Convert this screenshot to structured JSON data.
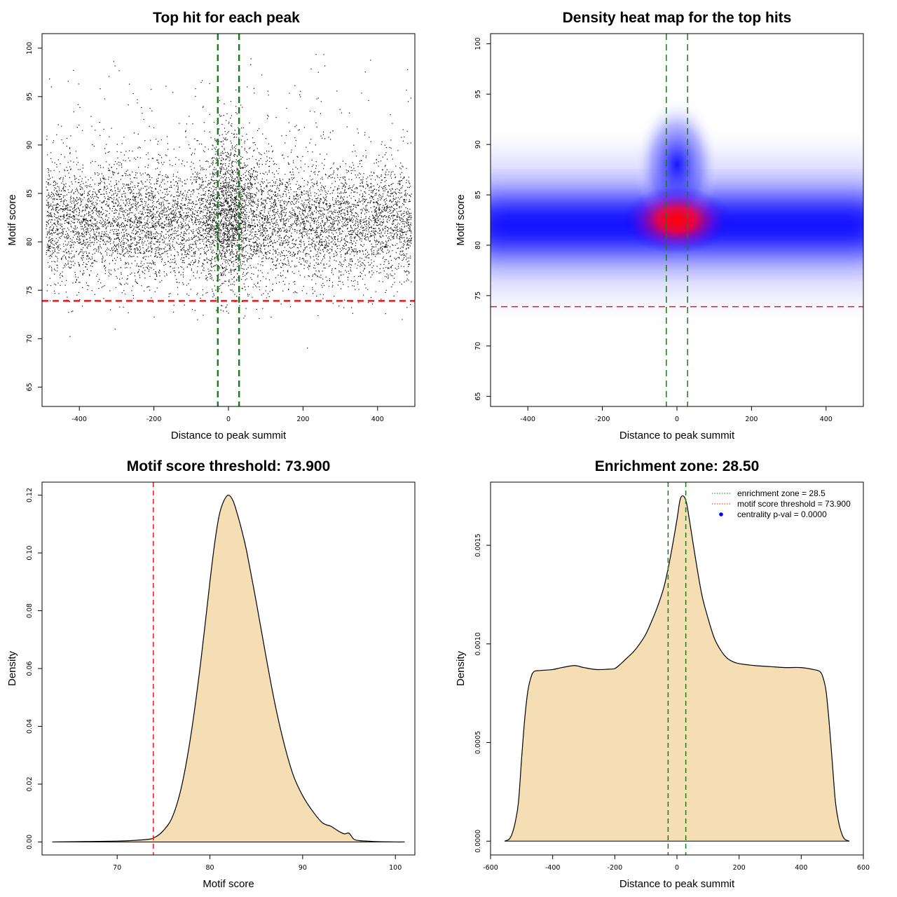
{
  "colors": {
    "threshold_line": "#e31a1c",
    "zone_line": "#1a7a1a",
    "density_fill": "#f5deb3",
    "heat_low": "#0000ff",
    "heat_high": "#ff0000",
    "points": "#000000"
  },
  "chart_data": [
    {
      "id": "scatter",
      "type": "scatter",
      "title": "Top hit for each peak",
      "xlabel": "Distance to peak summit",
      "ylabel": "Motif score",
      "xlim": [
        -500,
        500
      ],
      "ylim": [
        63,
        101.5
      ],
      "xticks": [
        -400,
        -200,
        0,
        200,
        400
      ],
      "yticks": [
        65,
        70,
        75,
        80,
        85,
        90,
        95,
        100
      ],
      "hlines": [
        73.9
      ],
      "vlines": [
        -28.5,
        28.5
      ],
      "x_range_of_points": [
        -490,
        490
      ],
      "score_center": 82,
      "score_sd": 3.2,
      "central_peak_score": 84
    },
    {
      "id": "heatmap",
      "type": "heatmap",
      "title": "Density heat map for the top hits",
      "xlabel": "Distance to peak summit",
      "ylabel": "Motif score",
      "xlim": [
        -500,
        500
      ],
      "ylim": [
        64,
        101
      ],
      "xticks": [
        -400,
        -200,
        0,
        200,
        400
      ],
      "yticks": [
        65,
        70,
        75,
        80,
        85,
        90,
        95,
        100
      ],
      "hlines": [
        73.9
      ],
      "vlines": [
        -28.5,
        28.5
      ],
      "hot_spot": {
        "x": 0,
        "score": 82.5
      },
      "band_score": 82
    },
    {
      "id": "score_density",
      "type": "area",
      "title": "Motif score threshold: 73.900",
      "xlabel": "Motif score",
      "ylabel": "Density",
      "xlim": [
        61.9,
        102.1
      ],
      "ylim": [
        -0.0045,
        0.1245
      ],
      "xticks": [
        70,
        80,
        90,
        100
      ],
      "yticks": [
        0.0,
        0.02,
        0.04,
        0.06,
        0.08,
        0.1,
        0.12
      ],
      "ytick_labels": [
        "0.00",
        "0.02",
        "0.04",
        "0.06",
        "0.08",
        "0.10",
        "0.12"
      ],
      "vlines": [
        73.9
      ],
      "x": [
        63,
        70,
        73,
        74,
        75,
        76,
        77,
        78,
        79,
        80,
        80.5,
        81,
        81.5,
        82,
        82.5,
        83,
        83.5,
        84,
        85,
        86,
        87,
        88,
        89,
        90,
        91,
        92,
        92.5,
        93,
        93.5,
        94,
        94.5,
        95,
        95.5,
        96,
        97,
        98,
        100,
        101
      ],
      "y": [
        0.0,
        0.0003,
        0.0008,
        0.0015,
        0.004,
        0.009,
        0.02,
        0.038,
        0.062,
        0.09,
        0.103,
        0.113,
        0.118,
        0.12,
        0.118,
        0.113,
        0.107,
        0.1,
        0.083,
        0.065,
        0.048,
        0.034,
        0.023,
        0.016,
        0.011,
        0.007,
        0.006,
        0.0055,
        0.0045,
        0.0035,
        0.0028,
        0.003,
        0.001,
        0.0005,
        0.0003,
        0.0001,
        0.0,
        0.0
      ]
    },
    {
      "id": "distance_density",
      "type": "area",
      "title": "Enrichment zone: 28.50",
      "xlabel": "Distance to peak summit",
      "ylabel": "Density",
      "xlim": [
        -600,
        600
      ],
      "ylim": [
        -7e-05,
        0.00182
      ],
      "xticks": [
        -600,
        -400,
        -200,
        0,
        200,
        400,
        600
      ],
      "yticks": [
        0.0,
        0.0005,
        0.001,
        0.0015
      ],
      "ytick_labels": [
        "0.0000",
        "0.0005",
        "0.0010",
        "0.0015"
      ],
      "vlines": [
        -28.5,
        28.5
      ],
      "x": [
        -555,
        -540,
        -530,
        -520,
        -510,
        -500,
        -490,
        -480,
        -470,
        -460,
        -440,
        -400,
        -370,
        -330,
        -300,
        -260,
        -220,
        -200,
        -180,
        -160,
        -140,
        -120,
        -100,
        -80,
        -60,
        -40,
        -20,
        0,
        10,
        20,
        30,
        40,
        60,
        80,
        100,
        120,
        140,
        160,
        180,
        200,
        250,
        300,
        350,
        400,
        440,
        460,
        470,
        480,
        490,
        500,
        510,
        520,
        530,
        540,
        555
      ],
      "y": [
        0.0,
        1e-05,
        4e-05,
        0.0001,
        0.0002,
        0.00042,
        0.00062,
        0.00076,
        0.00083,
        0.00086,
        0.000865,
        0.00087,
        0.00088,
        0.00089,
        0.00088,
        0.00087,
        0.000872,
        0.000875,
        0.0009,
        0.00093,
        0.00096,
        0.001,
        0.00105,
        0.00112,
        0.0012,
        0.0013,
        0.00145,
        0.00163,
        0.00173,
        0.00175,
        0.00172,
        0.00163,
        0.00143,
        0.00125,
        0.00113,
        0.00103,
        0.00097,
        0.00093,
        0.00091,
        0.0009,
        0.00089,
        0.000885,
        0.00088,
        0.00088,
        0.00087,
        0.00086,
        0.00083,
        0.00076,
        0.0006,
        0.0004,
        0.0002,
        0.0001,
        4e-05,
        1e-05,
        0.0
      ]
    }
  ],
  "legend": {
    "zone_label": "enrichment zone = 28.5",
    "threshold_label": "motif score threshold = 73.900",
    "pval_label": "centrality p-val = 0.0000"
  }
}
